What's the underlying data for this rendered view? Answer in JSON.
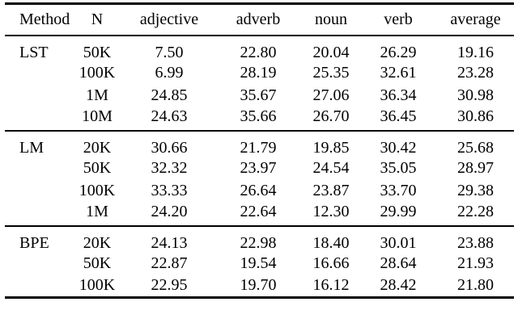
{
  "table": {
    "columns": [
      "Method",
      "N",
      "adjective",
      "adverb",
      "noun",
      "verb",
      "average"
    ],
    "sections": [
      {
        "method": "LST",
        "rows": [
          {
            "n": "50K",
            "values": [
              "7.50",
              "22.80",
              "20.04",
              "26.29",
              "19.16"
            ]
          },
          {
            "n": "100K",
            "values": [
              "6.99",
              "28.19",
              "25.35",
              "32.61",
              "23.28"
            ]
          },
          {
            "n": "1M",
            "values": [
              "24.85",
              "35.67",
              "27.06",
              "36.34",
              "30.98"
            ]
          },
          {
            "n": "10M",
            "values": [
              "24.63",
              "35.66",
              "26.70",
              "36.45",
              "30.86"
            ]
          }
        ]
      },
      {
        "method": "LM",
        "rows": [
          {
            "n": "20K",
            "values": [
              "30.66",
              "21.79",
              "19.85",
              "30.42",
              "25.68"
            ]
          },
          {
            "n": "50K",
            "values": [
              "32.32",
              "23.97",
              "24.54",
              "35.05",
              "28.97"
            ]
          },
          {
            "n": "100K",
            "values": [
              "33.33",
              "26.64",
              "23.87",
              "33.70",
              "29.38"
            ]
          },
          {
            "n": "1M",
            "values": [
              "24.20",
              "22.64",
              "12.30",
              "29.99",
              "22.28"
            ]
          }
        ]
      },
      {
        "method": "BPE",
        "rows": [
          {
            "n": "20K",
            "values": [
              "24.13",
              "22.98",
              "18.40",
              "30.01",
              "23.88"
            ]
          },
          {
            "n": "50K",
            "values": [
              "22.87",
              "19.54",
              "16.66",
              "28.64",
              "21.93"
            ]
          },
          {
            "n": "100K",
            "values": [
              "22.95",
              "19.70",
              "16.12",
              "28.42",
              "21.80"
            ]
          }
        ]
      }
    ]
  }
}
